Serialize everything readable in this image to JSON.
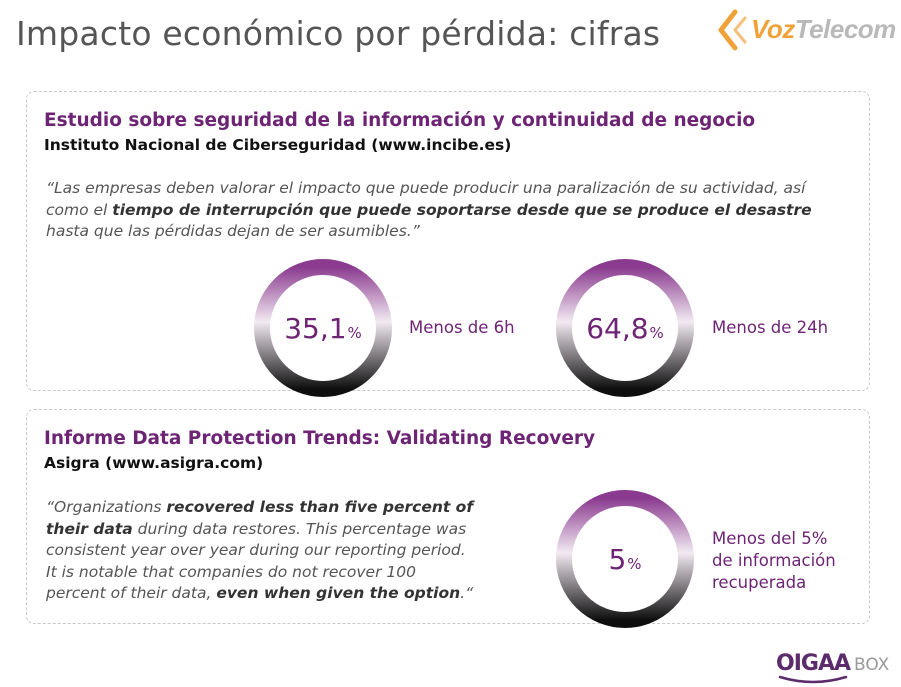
{
  "slide": {
    "title": "Impacto económico por pérdida: cifras"
  },
  "brand": {
    "logo_text_a": "Voz",
    "logo_text_b": "Telecom",
    "logo_icon": "voztelecom-chevron-icon"
  },
  "study1": {
    "title": "Estudio sobre seguridad de la información y continuidad de negocio",
    "source": "Instituto Nacional de Ciberseguridad (www.incibe.es)",
    "quote_open": "“Las empresas deben valorar el impacto que puede producir una paralización de su actividad, así como el ",
    "quote_bold": "tiempo de interrupción que puede soportarse desde que se produce el desastre",
    "quote_close": " hasta que las pérdidas dejan de ser asumibles.”",
    "stats": [
      {
        "value": "35,1",
        "unit": "%",
        "label": "Menos de 6h"
      },
      {
        "value": "64,8",
        "unit": "%",
        "label": "Menos de 24h"
      }
    ]
  },
  "study2": {
    "title": "Informe Data Protection Trends: Validating Recovery",
    "source": "Asigra (www.asigra.com)",
    "quote_1": "“Organizations ",
    "quote_b1": "recovered less than five percent of their data",
    "quote_2": " during data restores. This percentage was consistent year over year during our reporting period. It is notable that companies do not recover 100 percent of their data, ",
    "quote_b2": "even when given the option",
    "quote_3": ".“",
    "stat": {
      "value": "5",
      "unit": "%",
      "label_line1": "Menos del 5%",
      "label_line2": "de información",
      "label_line3": "recuperada"
    }
  },
  "footer": {
    "logo_a": "OIGAA",
    "logo_b": "BOX"
  },
  "colors": {
    "accent": "#6e2474",
    "ring_top": "#8a3a8f",
    "ring_bottom": "#111111"
  }
}
